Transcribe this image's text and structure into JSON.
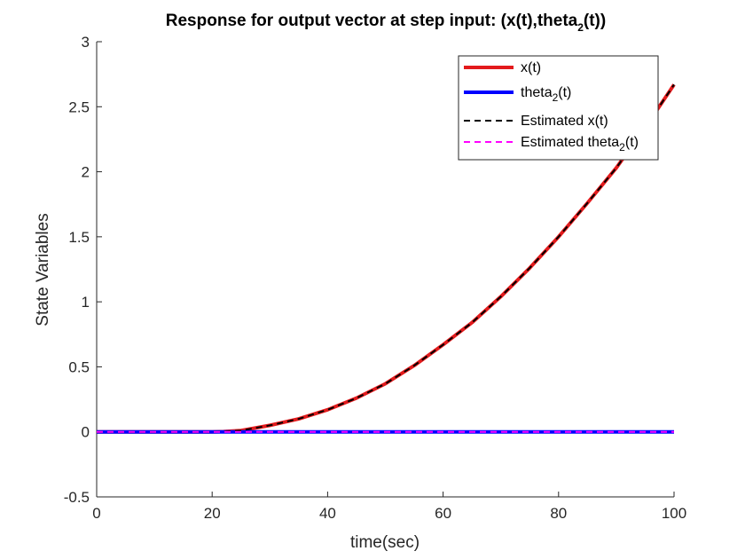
{
  "chart_data": {
    "type": "line",
    "title": "Response for output vector at step input: (x(t),theta",
    "title_sub": "2",
    "title_end": "(t))",
    "xlabel": "time(sec)",
    "ylabel": "State Variables",
    "xlim": [
      0,
      100
    ],
    "ylim": [
      -0.5,
      3
    ],
    "xticks": [
      "0",
      "20",
      "40",
      "60",
      "80",
      "100"
    ],
    "yticks": [
      "-0.5",
      "0",
      "0.5",
      "1",
      "1.5",
      "2",
      "2.5",
      "3"
    ],
    "grid": false,
    "legend_position": "top-right",
    "series": [
      {
        "name": "x(t)",
        "color": "#e31a1c",
        "style": "solid",
        "x": [
          0,
          20,
          22,
          25,
          30,
          35,
          40,
          45,
          50,
          55,
          60,
          65,
          70,
          75,
          80,
          85,
          90,
          95,
          100
        ],
        "y": [
          0,
          0,
          0.002,
          0.01,
          0.05,
          0.1,
          0.17,
          0.26,
          0.37,
          0.51,
          0.67,
          0.84,
          1.04,
          1.26,
          1.5,
          1.76,
          2.03,
          2.34,
          2.67
        ]
      },
      {
        "name": "theta",
        "name_sub": "2",
        "name_end": "(t)",
        "color": "#0000ff",
        "style": "solid",
        "x": [
          0,
          100
        ],
        "y": [
          0,
          0
        ]
      },
      {
        "name": "Estimated x(t)",
        "color": "#000000",
        "style": "dashed",
        "x": [
          0,
          20,
          22,
          25,
          30,
          35,
          40,
          45,
          50,
          55,
          60,
          65,
          70,
          75,
          80,
          85,
          90,
          95,
          100
        ],
        "y": [
          0,
          0,
          0.002,
          0.01,
          0.05,
          0.1,
          0.17,
          0.26,
          0.37,
          0.51,
          0.67,
          0.84,
          1.04,
          1.26,
          1.5,
          1.76,
          2.03,
          2.34,
          2.67
        ]
      },
      {
        "name": "Estimated theta",
        "name_sub": "2",
        "name_end": "(t)",
        "color": "#ff00ff",
        "style": "dashed",
        "x": [
          0,
          100
        ],
        "y": [
          0,
          0
        ]
      }
    ]
  }
}
